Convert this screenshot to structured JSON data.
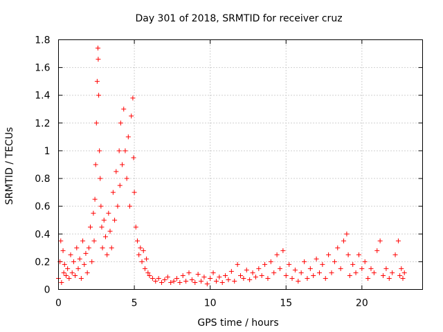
{
  "chart_data": {
    "type": "scatter",
    "title": "Day 301 of 2018, SRMTID for receiver cruz",
    "xlabel": "GPS time / hours",
    "ylabel": "SRMTID / TECUs",
    "xlim": [
      0,
      24
    ],
    "ylim": [
      0,
      1.8
    ],
    "xticks": [
      0,
      5,
      10,
      15,
      20
    ],
    "xtick_labels": [
      "0",
      "5",
      "10",
      "15",
      "20"
    ],
    "yticks": [
      0,
      0.2,
      0.4,
      0.6,
      0.8,
      1.0,
      1.2,
      1.4,
      1.6,
      1.8
    ],
    "ytick_labels": [
      "0",
      "0.2",
      "0.4",
      "0.6",
      "0.8",
      "1",
      "1.2",
      "1.4",
      "1.6",
      "1.8"
    ],
    "grid": true,
    "marker": "+",
    "color": "#ff0000",
    "series": [
      {
        "name": "SRMTID",
        "points": [
          [
            0.0,
            0.08
          ],
          [
            0.1,
            0.2
          ],
          [
            0.15,
            0.35
          ],
          [
            0.2,
            0.05
          ],
          [
            0.3,
            0.28
          ],
          [
            0.35,
            0.12
          ],
          [
            0.4,
            0.18
          ],
          [
            0.5,
            0.1
          ],
          [
            0.6,
            0.15
          ],
          [
            0.7,
            0.08
          ],
          [
            0.8,
            0.25
          ],
          [
            0.9,
            0.12
          ],
          [
            1.0,
            0.2
          ],
          [
            1.1,
            0.1
          ],
          [
            1.2,
            0.3
          ],
          [
            1.3,
            0.15
          ],
          [
            1.4,
            0.22
          ],
          [
            1.5,
            0.08
          ],
          [
            1.6,
            0.35
          ],
          [
            1.7,
            0.18
          ],
          [
            1.8,
            0.26
          ],
          [
            1.9,
            0.12
          ],
          [
            2.0,
            0.3
          ],
          [
            2.1,
            0.45
          ],
          [
            2.2,
            0.2
          ],
          [
            2.3,
            0.55
          ],
          [
            2.35,
            0.35
          ],
          [
            2.4,
            0.65
          ],
          [
            2.45,
            0.9
          ],
          [
            2.5,
            1.2
          ],
          [
            2.55,
            1.5
          ],
          [
            2.6,
            1.74
          ],
          [
            2.62,
            1.66
          ],
          [
            2.65,
            1.4
          ],
          [
            2.7,
            1.0
          ],
          [
            2.75,
            0.8
          ],
          [
            2.8,
            0.6
          ],
          [
            2.85,
            0.45
          ],
          [
            2.9,
            0.3
          ],
          [
            3.0,
            0.5
          ],
          [
            3.1,
            0.38
          ],
          [
            3.2,
            0.25
          ],
          [
            3.3,
            0.55
          ],
          [
            3.4,
            0.42
          ],
          [
            3.5,
            0.3
          ],
          [
            3.6,
            0.7
          ],
          [
            3.7,
            0.5
          ],
          [
            3.8,
            0.85
          ],
          [
            3.9,
            0.6
          ],
          [
            4.0,
            1.0
          ],
          [
            4.05,
            0.75
          ],
          [
            4.1,
            1.2
          ],
          [
            4.2,
            0.9
          ],
          [
            4.3,
            1.3
          ],
          [
            4.4,
            1.0
          ],
          [
            4.5,
            0.8
          ],
          [
            4.6,
            1.1
          ],
          [
            4.7,
            0.6
          ],
          [
            4.8,
            1.25
          ],
          [
            4.9,
            1.38
          ],
          [
            4.95,
            0.95
          ],
          [
            5.0,
            0.7
          ],
          [
            5.1,
            0.45
          ],
          [
            5.2,
            0.35
          ],
          [
            5.3,
            0.25
          ],
          [
            5.4,
            0.3
          ],
          [
            5.5,
            0.2
          ],
          [
            5.6,
            0.28
          ],
          [
            5.7,
            0.15
          ],
          [
            5.8,
            0.22
          ],
          [
            5.9,
            0.12
          ],
          [
            6.0,
            0.1
          ],
          [
            6.2,
            0.08
          ],
          [
            6.4,
            0.06
          ],
          [
            6.6,
            0.08
          ],
          [
            6.8,
            0.05
          ],
          [
            7.0,
            0.07
          ],
          [
            7.2,
            0.09
          ],
          [
            7.4,
            0.05
          ],
          [
            7.6,
            0.06
          ],
          [
            7.8,
            0.08
          ],
          [
            8.0,
            0.05
          ],
          [
            8.2,
            0.1
          ],
          [
            8.4,
            0.06
          ],
          [
            8.6,
            0.12
          ],
          [
            8.8,
            0.07
          ],
          [
            9.0,
            0.05
          ],
          [
            9.2,
            0.11
          ],
          [
            9.4,
            0.06
          ],
          [
            9.6,
            0.09
          ],
          [
            9.8,
            0.04
          ],
          [
            10.0,
            0.08
          ],
          [
            10.2,
            0.12
          ],
          [
            10.4,
            0.06
          ],
          [
            10.6,
            0.09
          ],
          [
            10.8,
            0.05
          ],
          [
            11.0,
            0.1
          ],
          [
            11.2,
            0.07
          ],
          [
            11.4,
            0.13
          ],
          [
            11.6,
            0.06
          ],
          [
            11.8,
            0.18
          ],
          [
            12.0,
            0.1
          ],
          [
            12.2,
            0.08
          ],
          [
            12.4,
            0.14
          ],
          [
            12.6,
            0.07
          ],
          [
            12.8,
            0.12
          ],
          [
            13.0,
            0.09
          ],
          [
            13.2,
            0.15
          ],
          [
            13.4,
            0.1
          ],
          [
            13.6,
            0.18
          ],
          [
            13.8,
            0.08
          ],
          [
            14.0,
            0.2
          ],
          [
            14.2,
            0.12
          ],
          [
            14.4,
            0.25
          ],
          [
            14.6,
            0.15
          ],
          [
            14.8,
            0.28
          ],
          [
            15.0,
            0.1
          ],
          [
            15.2,
            0.18
          ],
          [
            15.4,
            0.08
          ],
          [
            15.6,
            0.14
          ],
          [
            15.8,
            0.06
          ],
          [
            16.0,
            0.12
          ],
          [
            16.2,
            0.2
          ],
          [
            16.4,
            0.08
          ],
          [
            16.6,
            0.15
          ],
          [
            16.8,
            0.1
          ],
          [
            17.0,
            0.22
          ],
          [
            17.2,
            0.12
          ],
          [
            17.4,
            0.18
          ],
          [
            17.6,
            0.08
          ],
          [
            17.8,
            0.25
          ],
          [
            18.0,
            0.12
          ],
          [
            18.2,
            0.2
          ],
          [
            18.4,
            0.3
          ],
          [
            18.6,
            0.15
          ],
          [
            18.8,
            0.35
          ],
          [
            19.0,
            0.4
          ],
          [
            19.1,
            0.25
          ],
          [
            19.2,
            0.1
          ],
          [
            19.4,
            0.18
          ],
          [
            19.6,
            0.12
          ],
          [
            19.8,
            0.25
          ],
          [
            20.0,
            0.15
          ],
          [
            20.2,
            0.2
          ],
          [
            20.4,
            0.08
          ],
          [
            20.6,
            0.15
          ],
          [
            20.8,
            0.12
          ],
          [
            21.0,
            0.28
          ],
          [
            21.2,
            0.35
          ],
          [
            21.4,
            0.1
          ],
          [
            21.6,
            0.15
          ],
          [
            21.8,
            0.08
          ],
          [
            22.0,
            0.12
          ],
          [
            22.2,
            0.25
          ],
          [
            22.4,
            0.35
          ],
          [
            22.5,
            0.1
          ],
          [
            22.6,
            0.15
          ],
          [
            22.7,
            0.08
          ],
          [
            22.8,
            0.12
          ]
        ]
      }
    ]
  }
}
